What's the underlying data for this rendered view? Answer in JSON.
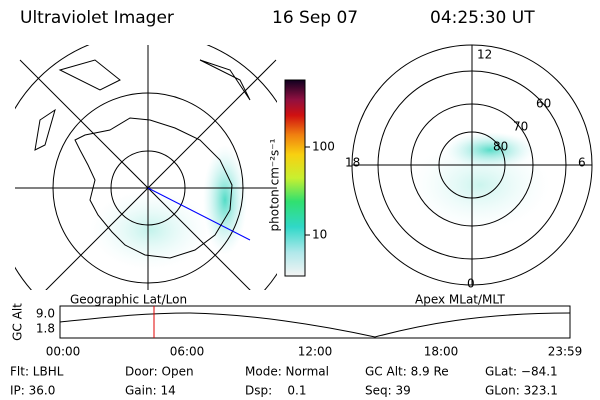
{
  "header": {
    "title": "Ultraviolet Imager",
    "date": "16 Sep 07",
    "time": "04:25:30 UT"
  },
  "colorbar": {
    "label": "photon cm⁻²s⁻¹",
    "ticks": [
      "100",
      "10"
    ]
  },
  "left_map": {
    "label": "Geographic Lat/Lon"
  },
  "right_map": {
    "label": "Apex MLat/MLT",
    "mlt_labels": [
      "12",
      "18",
      "6",
      "0"
    ],
    "lat_labels": [
      "60",
      "70",
      "80"
    ]
  },
  "orbit_plot": {
    "axis_label": "GC Alt",
    "yticks": [
      "9.0",
      "1.8"
    ],
    "xticks": [
      "00:00",
      "06:00",
      "12:00",
      "18:00",
      "23:59"
    ]
  },
  "footer": {
    "rows": [
      [
        "Flt: LBHL",
        "Door: Open",
        "Mode: Normal",
        "GC Alt: 8.9 Re",
        "GLat: −84.1"
      ],
      [
        "IP: 36.0",
        "Gain: 14",
        "Dsp:    0.1",
        "Seq: 39",
        "GLon: 323.1"
      ]
    ]
  }
}
